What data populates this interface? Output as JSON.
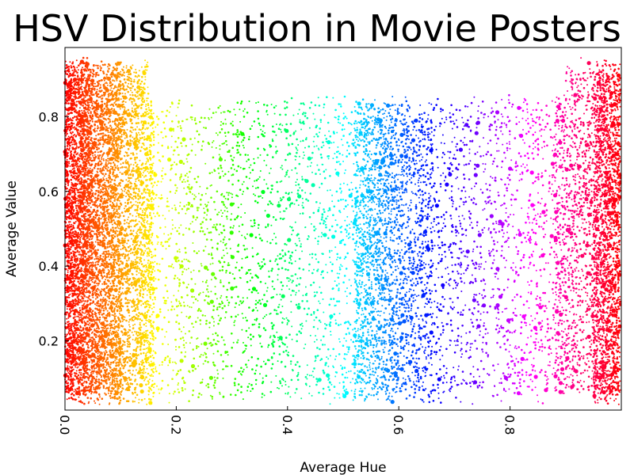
{
  "chart_data": {
    "type": "scatter",
    "title": "HSV Distribution in Movie Posters",
    "xlabel": "Average Hue",
    "ylabel": "Average Value",
    "xlim": [
      0.0,
      1.0
    ],
    "ylim": [
      0.015,
      0.985
    ],
    "x_ticks": [
      "0.0",
      "0.2",
      "0.4",
      "0.6",
      "0.8"
    ],
    "y_ticks": [
      "0.2",
      "0.4",
      "0.6",
      "0.8"
    ],
    "grid": false,
    "legend": "none",
    "color_encoding": "point color = hue",
    "density_by_hue": [
      {
        "hue_range": [
          0.0,
          0.05
        ],
        "relative_density": "very high"
      },
      {
        "hue_range": [
          0.05,
          0.16
        ],
        "relative_density": "high"
      },
      {
        "hue_range": [
          0.16,
          0.52
        ],
        "relative_density": "low"
      },
      {
        "hue_range": [
          0.52,
          0.66
        ],
        "relative_density": "medium"
      },
      {
        "hue_range": [
          0.66,
          0.88
        ],
        "relative_density": "low"
      },
      {
        "hue_range": [
          0.88,
          1.0
        ],
        "relative_density": "high"
      }
    ]
  }
}
